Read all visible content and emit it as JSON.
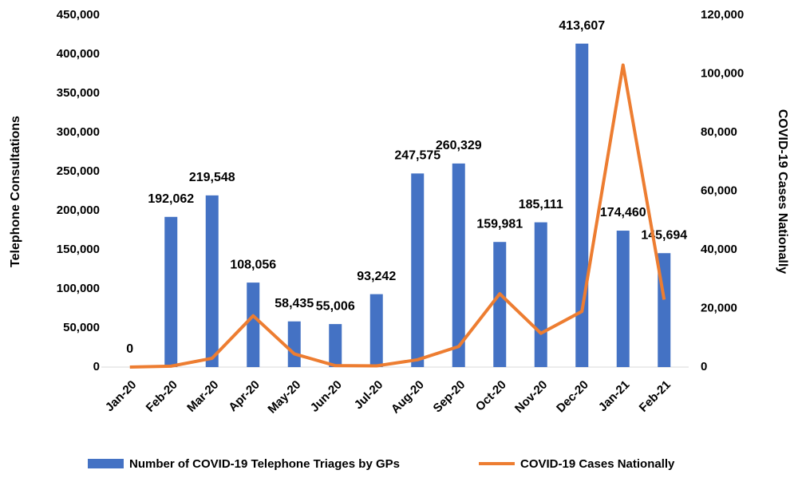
{
  "chart_data": {
    "type": "bar",
    "categories": [
      "Jan-20",
      "Feb-20",
      "Mar-20",
      "Apr-20",
      "May-20",
      "Jun-20",
      "Jul-20",
      "Aug-20",
      "Sep-20",
      "Oct-20",
      "Nov-20",
      "Dec-20",
      "Jan-21",
      "Feb-21"
    ],
    "y_label": "Telephone Consultations",
    "y2_label": "COVID-19 Cases Nationally",
    "series": [
      {
        "name": "Number of COVID-19 Telephone Triages by GPs",
        "type": "bar",
        "color": "#4472c4",
        "values": [
          0,
          192062,
          219548,
          108056,
          58435,
          55006,
          93242,
          247575,
          260329,
          159981,
          185111,
          413607,
          174460,
          145694
        ],
        "value_labels": [
          "0",
          "192,062",
          "219,548",
          "108,056",
          "58,435",
          "55,006",
          "93,242",
          "247,575",
          "260,329",
          "159,981",
          "185,111",
          "413,607",
          "174,460",
          "145,694"
        ]
      },
      {
        "name": "COVID-19 Cases Nationally",
        "type": "line",
        "axis": "y2",
        "color": "#ed7d31",
        "values": [
          0,
          300,
          3000,
          17500,
          4500,
          500,
          400,
          2500,
          7000,
          25000,
          11500,
          19000,
          103000,
          23000
        ]
      }
    ],
    "ylim": [
      0,
      450000
    ],
    "yticks": [
      0,
      {
        "value": 50000,
        "label": "50,000"
      },
      {
        "value": 100000,
        "label": "100,000"
      },
      {
        "value": 150000,
        "label": "150,000"
      },
      {
        "value": 200000,
        "label": "200,000"
      },
      {
        "value": 250000,
        "label": "250,000"
      },
      {
        "value": 300000,
        "label": "300,000"
      },
      {
        "value": 350000,
        "label": "350,000"
      },
      {
        "value": 400000,
        "label": "400,000"
      },
      {
        "value": 450000,
        "label": "450,000"
      }
    ],
    "y2lim": [
      0,
      120000
    ],
    "y2ticks": [
      0,
      {
        "value": 20000,
        "label": "20,000"
      },
      {
        "value": 40000,
        "label": "40,000"
      },
      {
        "value": 60000,
        "label": "60,000"
      },
      {
        "value": 80000,
        "label": "80,000"
      },
      {
        "value": 100000,
        "label": "100,000"
      },
      {
        "value": 120000,
        "label": "120,000"
      }
    ],
    "legend": "bottom"
  }
}
